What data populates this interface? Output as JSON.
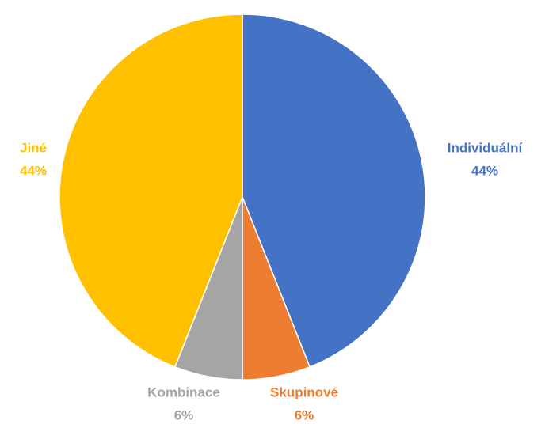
{
  "chart_data": {
    "type": "pie",
    "categories": [
      "Individuální",
      "Skupinové",
      "Kombinace",
      "Jiné"
    ],
    "values": [
      44,
      6,
      6,
      44
    ],
    "value_labels": [
      "44%",
      "6%",
      "6%",
      "44%"
    ],
    "colors": [
      "#4472c4",
      "#ed7d31",
      "#a5a5a5",
      "#ffc000"
    ]
  }
}
